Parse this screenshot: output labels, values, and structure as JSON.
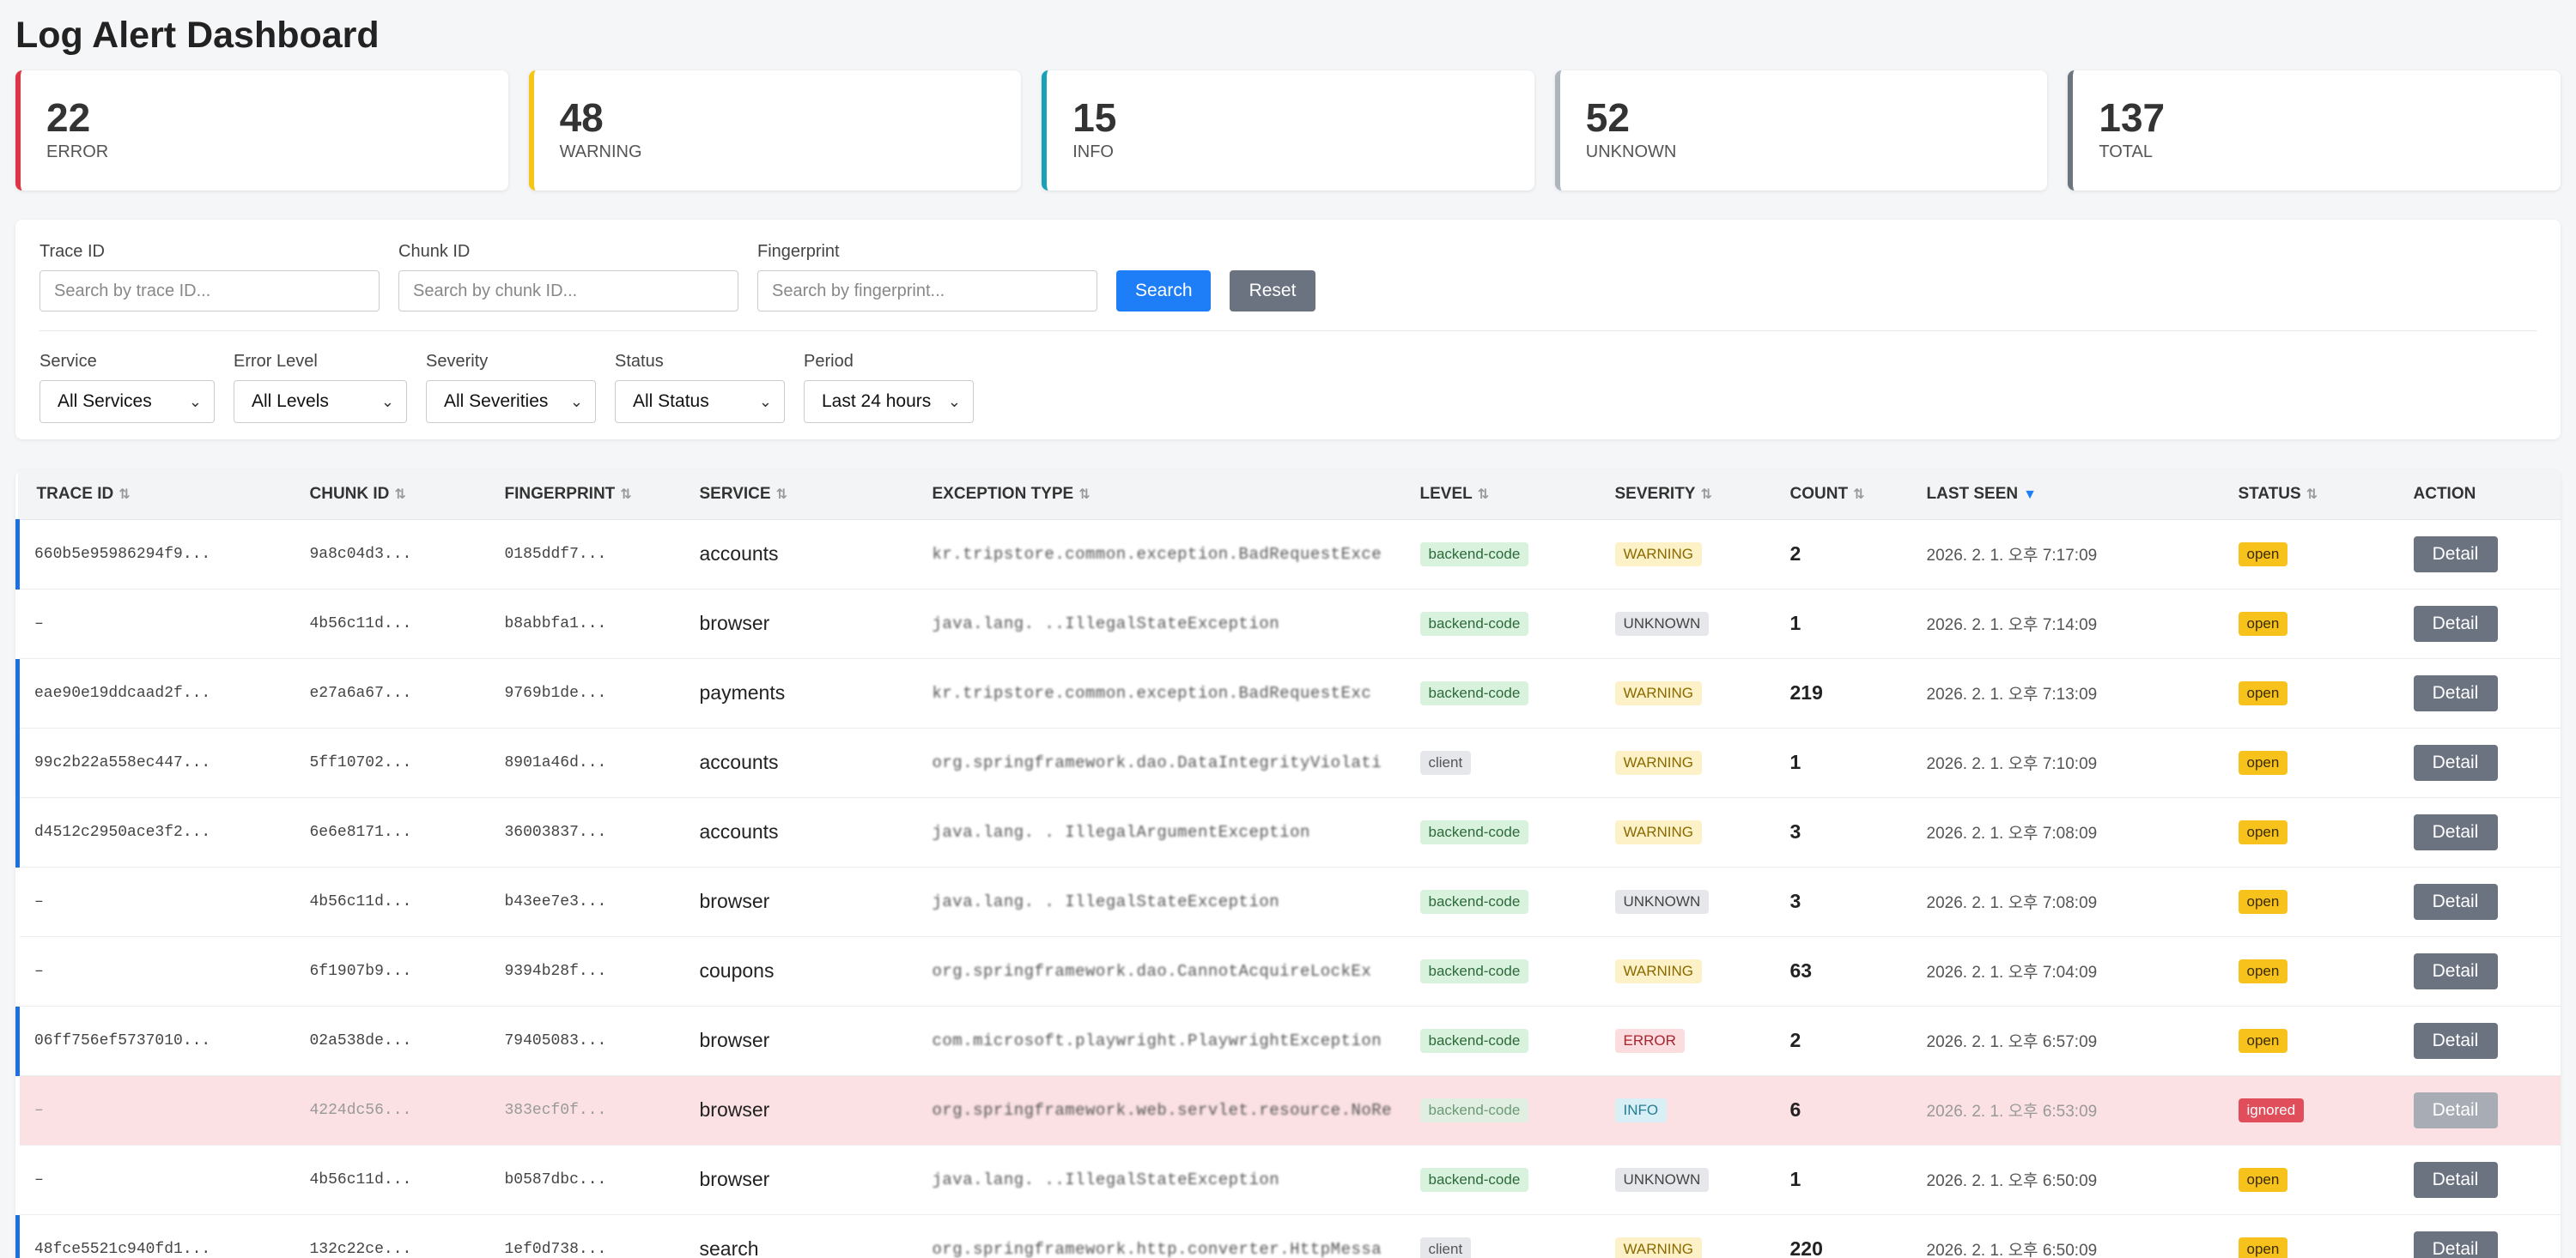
{
  "header": {
    "title": "Log Alert Dashboard"
  },
  "stats": [
    {
      "value": "22",
      "label": "ERROR",
      "color": "#dc3545"
    },
    {
      "value": "48",
      "label": "WARNING",
      "color": "#f5c518"
    },
    {
      "value": "15",
      "label": "INFO",
      "color": "#17a2b8"
    },
    {
      "value": "52",
      "label": "UNKNOWN",
      "color": "#adb5bd"
    },
    {
      "value": "137",
      "label": "TOTAL",
      "color": "#6c757d"
    }
  ],
  "filters": {
    "trace_label": "Trace ID",
    "trace_placeholder": "Search by trace ID...",
    "chunk_label": "Chunk ID",
    "chunk_placeholder": "Search by chunk ID...",
    "fingerprint_label": "Fingerprint",
    "fingerprint_placeholder": "Search by fingerprint...",
    "search_button": "Search",
    "reset_button": "Reset",
    "service_label": "Service",
    "service_value": "All Services",
    "level_label": "Error Level",
    "level_value": "All Levels",
    "severity_label": "Severity",
    "severity_value": "All Severities",
    "status_label": "Status",
    "status_value": "All Status",
    "period_label": "Period",
    "period_value": "Last 24 hours"
  },
  "table": {
    "columns": [
      "TRACE ID",
      "CHUNK ID",
      "FINGERPRINT",
      "SERVICE",
      "EXCEPTION TYPE",
      "LEVEL",
      "SEVERITY",
      "COUNT",
      "LAST SEEN",
      "STATUS",
      "ACTION"
    ],
    "sort_icon": "⇅",
    "active_sort_icon": "▼",
    "rows": [
      {
        "trace": "660b5e95986294f9...",
        "chunk": "9a8c04d3...",
        "fp": "0185ddf7...",
        "service": "accounts",
        "exception": "kr.tripstore.common.exception.BadRequestExce",
        "level": "backend-code",
        "severity": "WARNING",
        "count": "2",
        "seen": "2026. 2. 1. 오후 7:17:09",
        "status": "open",
        "action": "Detail"
      },
      {
        "trace": "–",
        "chunk": "4b56c11d...",
        "fp": "b8abbfa1...",
        "service": "browser",
        "exception": "java.lang. ..IllegalStateException",
        "level": "backend-code",
        "severity": "UNKNOWN",
        "count": "1",
        "seen": "2026. 2. 1. 오후 7:14:09",
        "status": "open",
        "action": "Detail"
      },
      {
        "trace": "eae90e19ddcaad2f...",
        "chunk": "e27a6a67...",
        "fp": "9769b1de...",
        "service": "payments",
        "exception": "kr.tripstore.common.exception.BadRequestExc",
        "level": "backend-code",
        "severity": "WARNING",
        "count": "219",
        "seen": "2026. 2. 1. 오후 7:13:09",
        "status": "open",
        "action": "Detail"
      },
      {
        "trace": "99c2b22a558ec447...",
        "chunk": "5ff10702...",
        "fp": "8901a46d...",
        "service": "accounts",
        "exception": "org.springframework.dao.DataIntegrityViolati",
        "level": "client",
        "severity": "WARNING",
        "count": "1",
        "seen": "2026. 2. 1. 오후 7:10:09",
        "status": "open",
        "action": "Detail"
      },
      {
        "trace": "d4512c2950ace3f2...",
        "chunk": "6e6e8171...",
        "fp": "36003837...",
        "service": "accounts",
        "exception": "java.lang. . IllegalArgumentException",
        "level": "backend-code",
        "severity": "WARNING",
        "count": "3",
        "seen": "2026. 2. 1. 오후 7:08:09",
        "status": "open",
        "action": "Detail"
      },
      {
        "trace": "–",
        "chunk": "4b56c11d...",
        "fp": "b43ee7e3...",
        "service": "browser",
        "exception": "java.lang. . IllegalStateException",
        "level": "backend-code",
        "severity": "UNKNOWN",
        "count": "3",
        "seen": "2026. 2. 1. 오후 7:08:09",
        "status": "open",
        "action": "Detail"
      },
      {
        "trace": "–",
        "chunk": "6f1907b9...",
        "fp": "9394b28f...",
        "service": "coupons",
        "exception": "org.springframework.dao.CannotAcquireLockEx",
        "level": "backend-code",
        "severity": "WARNING",
        "count": "63",
        "seen": "2026. 2. 1. 오후 7:04:09",
        "status": "open",
        "action": "Detail"
      },
      {
        "trace": "06ff756ef5737010...",
        "chunk": "02a538de...",
        "fp": "79405083...",
        "service": "browser",
        "exception": "com.microsoft.playwright.PlaywrightException",
        "level": "backend-code",
        "severity": "ERROR",
        "count": "2",
        "seen": "2026. 2. 1. 오후 6:57:09",
        "status": "open",
        "action": "Detail"
      },
      {
        "trace": "–",
        "chunk": "4224dc56...",
        "fp": "383ecf0f...",
        "service": "browser",
        "exception": "org.springframework.web.servlet.resource.NoRe",
        "level": "backend-code",
        "severity": "INFO",
        "count": "6",
        "seen": "2026. 2. 1. 오후 6:53:09",
        "status": "ignored",
        "action": "Detail"
      },
      {
        "trace": "–",
        "chunk": "4b56c11d...",
        "fp": "b0587dbc...",
        "service": "browser",
        "exception": "java.lang. ..IllegalStateException",
        "level": "backend-code",
        "severity": "UNKNOWN",
        "count": "1",
        "seen": "2026. 2. 1. 오후 6:50:09",
        "status": "open",
        "action": "Detail"
      },
      {
        "trace": "48fce5521c940fd1...",
        "chunk": "132c22ce...",
        "fp": "1ef0d738...",
        "service": "search",
        "exception": "org.springframework.http.converter.HttpMessa",
        "level": "client",
        "severity": "WARNING",
        "count": "220",
        "seen": "2026. 2. 1. 오후 6:50:09",
        "status": "open",
        "action": "Detail"
      }
    ]
  }
}
